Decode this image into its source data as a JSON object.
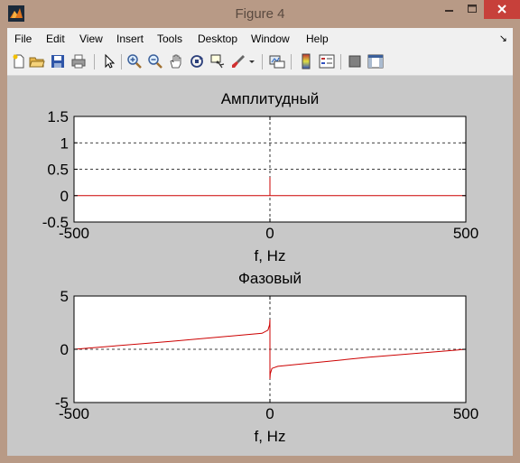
{
  "window": {
    "title": "Figure 4",
    "icon": "matlab-icon"
  },
  "menu": [
    "File",
    "Edit",
    "View",
    "Insert",
    "Tools",
    "Desktop",
    "Window",
    "Help"
  ],
  "toolbar": [
    "new-figure-icon",
    "open-file-icon",
    "save-icon",
    "print-icon",
    "pointer-icon",
    "zoom-in-icon",
    "zoom-out-icon",
    "pan-icon",
    "rotate-3d-icon",
    "data-cursor-icon",
    "brush-icon",
    "link-plot-icon",
    "colorbar-icon",
    "legend-icon",
    "hide-plot-tools-icon",
    "show-plot-tools-icon"
  ],
  "chart_data": [
    {
      "type": "line",
      "title": "Амплитудный",
      "xlabel": "f, Hz",
      "ylabel": "",
      "xlim": [
        -500,
        500
      ],
      "ylim": [
        -0.5,
        1.5
      ],
      "xticks": [
        "-500",
        "0",
        "500"
      ],
      "yticks": [
        "1.5",
        "1",
        "0.5",
        "0",
        "-0.5"
      ],
      "grid": "dashed lines at y = 1, y = 0.5 and x = 0",
      "series": [
        {
          "color": "#cc0000",
          "x": [
            -500,
            -1,
            0,
            0,
            0,
            1,
            500
          ],
          "y": [
            0,
            0,
            0,
            0.35,
            0,
            0,
            0
          ]
        }
      ]
    },
    {
      "type": "line",
      "title": "Фазовый",
      "xlabel": "f, Hz",
      "ylabel": "",
      "xlim": [
        -500,
        500
      ],
      "ylim": [
        -5,
        5
      ],
      "xticks": [
        "-500",
        "0",
        "500"
      ],
      "yticks": [
        "5",
        "0",
        "-5"
      ],
      "grid": "dashed lines at y = 0 and x = 0",
      "series": [
        {
          "color": "#cc0000",
          "x": [
            -500,
            -250,
            -20,
            -5,
            -1,
            0,
            0,
            1,
            5,
            20,
            250,
            500
          ],
          "y": [
            0,
            0.75,
            1.5,
            1.8,
            2.3,
            2.8,
            -2.8,
            -2.3,
            -1.8,
            -1.6,
            -0.75,
            0
          ]
        }
      ]
    }
  ]
}
